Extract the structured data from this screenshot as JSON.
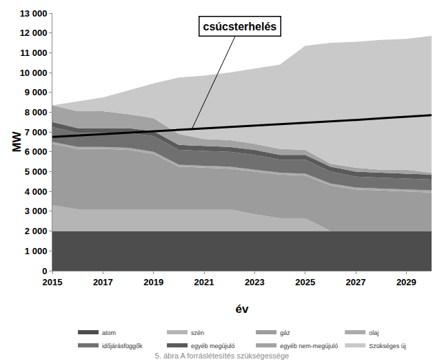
{
  "chart_data": {
    "type": "area",
    "stacked": true,
    "title": "5. ábra A forráslétesítés szükségessége",
    "x_label": "év",
    "y_label": "MW",
    "x": [
      2015,
      2016,
      2017,
      2018,
      2019,
      2020,
      2021,
      2022,
      2023,
      2024,
      2025,
      2026,
      2027,
      2028,
      2029,
      2030
    ],
    "xlim": [
      2015,
      2030
    ],
    "xticks": [
      2015,
      2017,
      2019,
      2021,
      2023,
      2025,
      2027,
      2029
    ],
    "ylim": [
      0,
      13000
    ],
    "yticks": [
      {
        "value": 0,
        "label": "0"
      },
      {
        "value": 1000,
        "label": "1 000"
      },
      {
        "value": 2000,
        "label": "2 000"
      },
      {
        "value": 3000,
        "label": "3 000"
      },
      {
        "value": 4000,
        "label": "4 000"
      },
      {
        "value": 5000,
        "label": "5 000"
      },
      {
        "value": 6000,
        "label": "6 000"
      },
      {
        "value": 7000,
        "label": "7 000"
      },
      {
        "value": 8000,
        "label": "8 000"
      },
      {
        "value": 9000,
        "label": "9 000"
      },
      {
        "value": 10000,
        "label": "10 000"
      },
      {
        "value": 11000,
        "label": "11 000"
      },
      {
        "value": 12000,
        "label": "12 000"
      },
      {
        "value": 13000,
        "label": "13 000"
      }
    ],
    "grid": false,
    "legend": "bottom",
    "series": [
      {
        "name": "atom",
        "color": "#4d4d4d",
        "values": [
          2000,
          2000,
          2000,
          2000,
          2000,
          2000,
          2000,
          2000,
          2000,
          2000,
          2000,
          2000,
          2000,
          2000,
          2000,
          2000
        ]
      },
      {
        "name": "szén",
        "color": "#b5b5b5",
        "values": [
          1300,
          1100,
          1100,
          1100,
          1100,
          1100,
          1100,
          1100,
          850,
          650,
          650,
          0,
          0,
          0,
          0,
          0
        ]
      },
      {
        "name": "gáz",
        "color": "#9c9c9c",
        "values": [
          3100,
          3050,
          3050,
          3000,
          2800,
          2150,
          2100,
          2050,
          2150,
          2200,
          2150,
          2300,
          2100,
          2050,
          2000,
          1950
        ]
      },
      {
        "name": "olaj",
        "color": "#ababab",
        "values": [
          100,
          100,
          100,
          100,
          100,
          100,
          100,
          100,
          100,
          100,
          100,
          100,
          100,
          100,
          100,
          100
        ]
      },
      {
        "name": "időjárásfüggők",
        "color": "#707070",
        "values": [
          750,
          700,
          700,
          750,
          800,
          750,
          750,
          750,
          750,
          650,
          700,
          600,
          550,
          550,
          550,
          550
        ]
      },
      {
        "name": "egyéb megújuló",
        "color": "#5a5a5a",
        "values": [
          250,
          250,
          250,
          250,
          250,
          250,
          250,
          250,
          250,
          250,
          250,
          250,
          250,
          250,
          250,
          250
        ]
      },
      {
        "name": "egyéb nem-megújuló",
        "color": "#a3a3a3",
        "values": [
          850,
          850,
          850,
          700,
          650,
          550,
          350,
          350,
          300,
          300,
          250,
          150,
          200,
          150,
          200,
          100
        ]
      },
      {
        "name": "Szükséges új",
        "color": "#c9c9c9",
        "values": [
          0,
          500,
          700,
          1200,
          1750,
          2850,
          3200,
          3400,
          3800,
          4250,
          5250,
          6100,
          6350,
          6550,
          6600,
          6900
        ]
      },
      {
        "name": "csúcsterhelés",
        "type": "line",
        "color": "#000000",
        "values": [
          6750,
          6820,
          6890,
          6960,
          7030,
          7100,
          7170,
          7240,
          7310,
          7380,
          7450,
          7530,
          7610,
          7690,
          7770,
          7850
        ]
      }
    ],
    "annotations": [
      {
        "text": "csúcsterhelés",
        "x": 2020.5,
        "y": 7100
      }
    ]
  }
}
